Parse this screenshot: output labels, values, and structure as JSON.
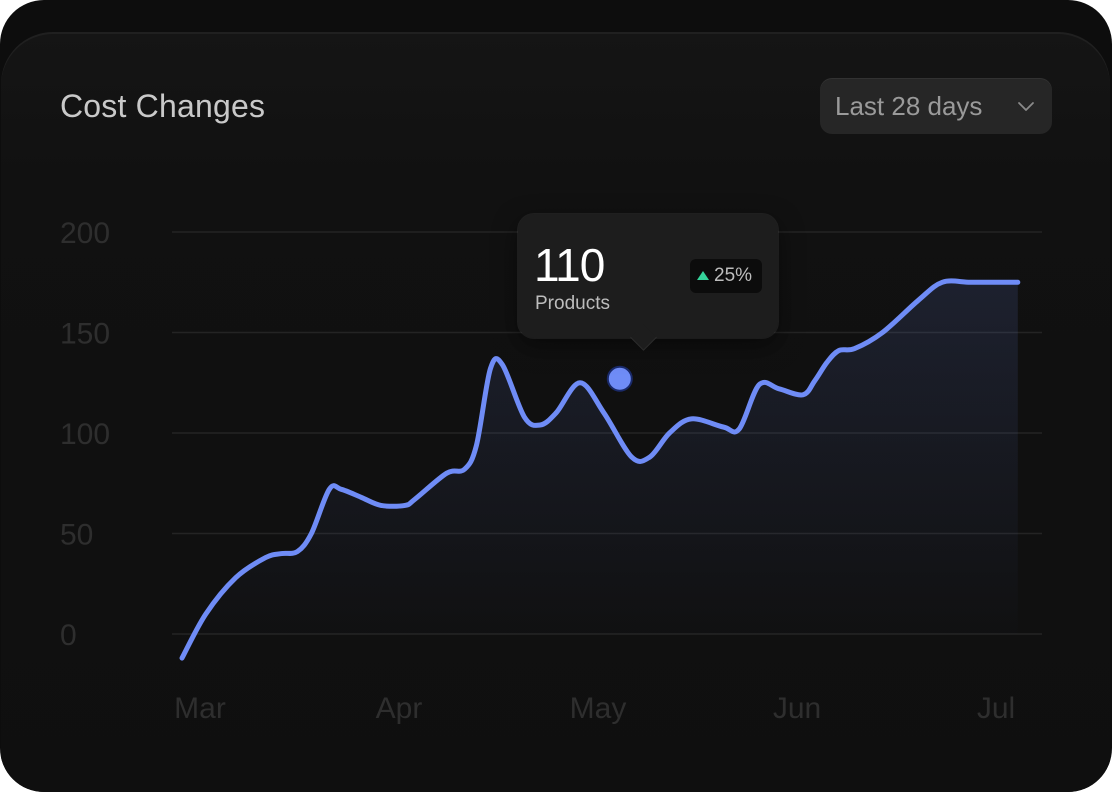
{
  "card": {
    "title": "Cost Changes"
  },
  "range_select": {
    "value": "Last 28 days",
    "icon": "chevron-down-icon"
  },
  "tooltip": {
    "value": "110",
    "label": "Products",
    "change": "25%",
    "change_direction": "up",
    "change_color": "#35d39a"
  },
  "colors": {
    "line": "#6f8cf6",
    "marker": "#6f8cf6",
    "gridline": "#242424",
    "axis_text": "#2e2e2e"
  },
  "chart_data": {
    "type": "area",
    "title": "Cost Changes",
    "xlabel": "",
    "ylabel": "",
    "ylim": [
      0,
      200
    ],
    "yticks": [
      0,
      50,
      100,
      150,
      200
    ],
    "xticks": [
      "Mar",
      "Apr",
      "May",
      "Jun",
      "Jul"
    ],
    "grid": true,
    "legend": "none",
    "series": [
      {
        "x": [
          0,
          0.12,
          0.27,
          0.42,
          0.5,
          0.58,
          0.65,
          0.74,
          0.8,
          0.9,
          1.0,
          1.12,
          1.17,
          1.33,
          1.42,
          1.48,
          1.55,
          1.61,
          1.72,
          1.8,
          1.88,
          2.0,
          2.12,
          2.26,
          2.35,
          2.45,
          2.56,
          2.72,
          2.8,
          2.9,
          3.0,
          3.12,
          3.18,
          3.24,
          3.3,
          3.38,
          3.52,
          3.7,
          3.82,
          3.96,
          4.1,
          4.2
        ],
        "y": [
          -12,
          10,
          28,
          38,
          40,
          41,
          50,
          72,
          72,
          68,
          64,
          64,
          67,
          80,
          82,
          94,
          132,
          134,
          108,
          104,
          110,
          125,
          110,
          88,
          88,
          100,
          107,
          103,
          102,
          124,
          122,
          119,
          126,
          135,
          141,
          142,
          150,
          166,
          175,
          175,
          175,
          175
        ]
      }
    ],
    "highlight": {
      "x": 2.2,
      "y": 127
    }
  }
}
